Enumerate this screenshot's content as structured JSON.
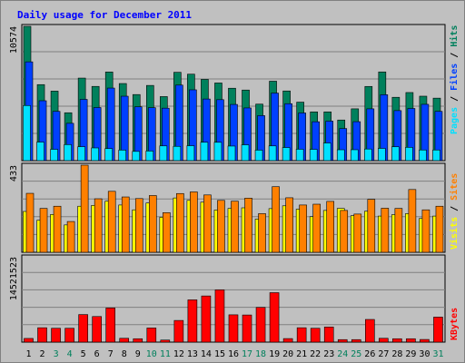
{
  "chart_data": [
    {
      "type": "bar",
      "title": "Daily usage for December 2011",
      "panel": "hits-files-pages",
      "ymax_label": "10574",
      "ylim": [
        0,
        10574
      ],
      "legend": [
        {
          "label": "Pages",
          "color": "#00e0ff"
        },
        {
          "label": "Files",
          "color": "#0040ff"
        },
        {
          "label": "Hits",
          "color": "#00805c"
        }
      ],
      "categories": [
        "1",
        "2",
        "3",
        "4",
        "5",
        "6",
        "7",
        "8",
        "9",
        "10",
        "11",
        "12",
        "13",
        "14",
        "15",
        "16",
        "17",
        "18",
        "19",
        "20",
        "21",
        "22",
        "23",
        "24",
        "25",
        "26",
        "27",
        "28",
        "29",
        "30",
        "31"
      ],
      "series": [
        {
          "name": "Hits",
          "values": [
            10574,
            5984,
            5472,
            3769,
            6498,
            5843,
            6981,
            6070,
            5202,
            5920,
            5042,
            6953,
            6806,
            6396,
            6113,
            5700,
            5557,
            4448,
            6254,
            5485,
            4604,
            3837,
            3838,
            3197,
            4079,
            5840,
            6983,
            4986,
            5361,
            5073,
            4919
          ]
        },
        {
          "name": "Files",
          "values": [
            7777,
            4715,
            3879,
            2938,
            4822,
            4180,
            5712,
            5071,
            4236,
            4169,
            4131,
            5947,
            5575,
            4851,
            4800,
            4424,
            4148,
            3545,
            5318,
            4483,
            3754,
            3062,
            3110,
            2527,
            3067,
            4079,
            5188,
            3938,
            4107,
            4433,
            3879
          ]
        },
        {
          "name": "Pages",
          "values": [
            4338,
            1462,
            890,
            1261,
            1096,
            1001,
            948,
            830,
            727,
            757,
            1161,
            1125,
            1174,
            1446,
            1444,
            1147,
            1245,
            828,
            1160,
            1032,
            898,
            887,
            1390,
            856,
            859,
            914,
            964,
            1091,
            1045,
            839,
            839
          ]
        }
      ]
    },
    {
      "type": "bar",
      "panel": "visits-sites",
      "ymax_label": "433",
      "ylim": [
        0,
        433
      ],
      "legend": [
        {
          "label": "Visits",
          "color": "#ffff00"
        },
        {
          "label": "Sites",
          "color": "#ff8000"
        }
      ],
      "categories": [
        "1",
        "2",
        "3",
        "4",
        "5",
        "6",
        "7",
        "8",
        "9",
        "10",
        "11",
        "12",
        "13",
        "14",
        "15",
        "16",
        "17",
        "18",
        "19",
        "20",
        "21",
        "22",
        "23",
        "24",
        "25",
        "26",
        "27",
        "28",
        "29",
        "30",
        "31"
      ],
      "series": [
        {
          "name": "Visits",
          "values": [
            203,
            159,
            188,
            136,
            229,
            233,
            254,
            235,
            211,
            245,
            174,
            270,
            258,
            249,
            210,
            218,
            221,
            165,
            217,
            231,
            214,
            177,
            208,
            218,
            182,
            204,
            180,
            187,
            192,
            168,
            180
          ]
        },
        {
          "name": "Sites",
          "values": [
            293,
            218,
            229,
            153,
            433,
            266,
            303,
            275,
            267,
            282,
            197,
            292,
            300,
            285,
            258,
            254,
            269,
            192,
            326,
            271,
            235,
            239,
            253,
            208,
            190,
            263,
            219,
            218,
            312,
            211,
            229
          ]
        }
      ]
    },
    {
      "type": "bar",
      "panel": "kbytes",
      "ymax_label": "14521523",
      "ylim": [
        0,
        14521523
      ],
      "legend": [
        {
          "label": "KBytes",
          "color": "#ff0000"
        }
      ],
      "categories": [
        "1",
        "2",
        "3",
        "4",
        "5",
        "6",
        "7",
        "8",
        "9",
        "10",
        "11",
        "12",
        "13",
        "14",
        "15",
        "16",
        "17",
        "18",
        "19",
        "20",
        "21",
        "22",
        "23",
        "24",
        "25",
        "26",
        "27",
        "28",
        "29",
        "30",
        "31"
      ],
      "series": [
        {
          "name": "KBytes",
          "values": [
            628000,
            2450000,
            2360000,
            2360000,
            4690000,
            4360000,
            5810000,
            653000,
            578000,
            2410000,
            353000,
            3690000,
            7200000,
            7860000,
            8900000,
            4650000,
            4620000,
            5910000,
            8420000,
            603000,
            2450000,
            2360000,
            2580000,
            428000,
            428000,
            3860000,
            653000,
            578000,
            578000,
            453000,
            4260000
          ]
        }
      ]
    }
  ],
  "weekend_days": [
    "3",
    "4",
    "10",
    "11",
    "17",
    "18",
    "24",
    "25",
    "31"
  ],
  "colors": {
    "background": "#c0c0c0",
    "plot_area": "#c0c0c0",
    "grid": "#808080",
    "title_text": "#0000ff",
    "axis_text": "#000000",
    "weekday_label": "#000000",
    "weekend_label": "#00805c",
    "bar_outline": "#000000"
  }
}
